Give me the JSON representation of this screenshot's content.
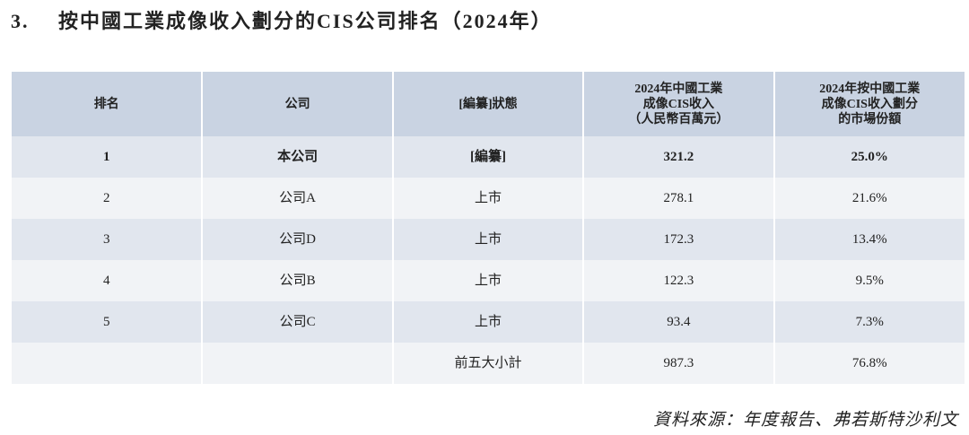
{
  "header": {
    "number": "3.",
    "title": "按中國工業成像收入劃分的CIS公司排名（2024年）"
  },
  "table": {
    "columns": [
      "排名",
      "公司",
      "[編纂]狀態",
      [
        "2024年中國工業",
        "成像CIS收入",
        "（人民幣百萬元）"
      ],
      [
        "2024年按中國工業",
        "成像CIS收入劃分",
        "的市場份額"
      ]
    ],
    "rows": [
      [
        1,
        "本公司",
        "[編纂]",
        321.2,
        "25.0%"
      ],
      [
        2,
        "公司A",
        "上市",
        278.1,
        "21.6%"
      ],
      [
        3,
        "公司D",
        "上市",
        172.3,
        "13.4%"
      ],
      [
        4,
        "公司B",
        "上市",
        122.3,
        "9.5%"
      ],
      [
        5,
        "公司C",
        "上市",
        93.4,
        "7.3%"
      ]
    ],
    "subtotal": {
      "label": "前五大小計",
      "revenue": 987.3,
      "share": "76.8%"
    }
  },
  "source": "資料來源：年度報告、弗若斯特沙利文"
}
